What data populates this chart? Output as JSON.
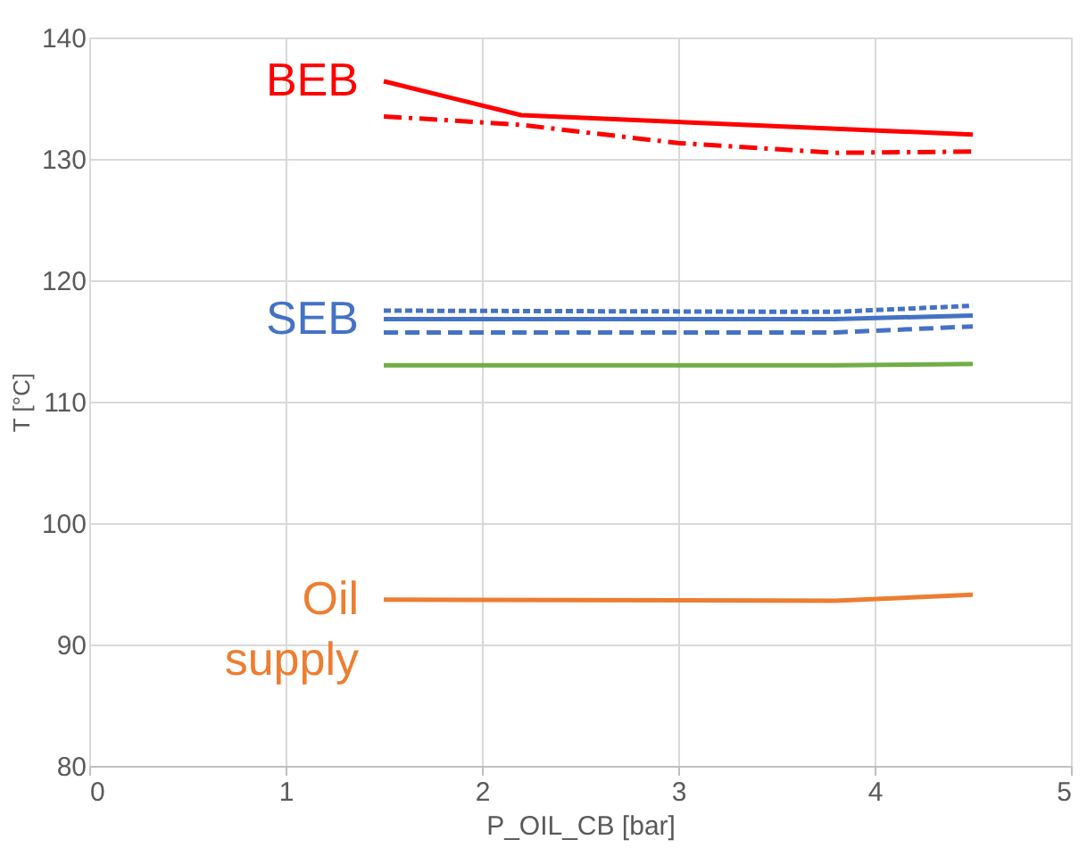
{
  "chart_data": {
    "type": "line",
    "xlabel": "P_OIL_CB [bar]",
    "ylabel": "T [°C]",
    "xlim": [
      0,
      5
    ],
    "xticks": [
      0,
      1,
      2,
      3,
      4,
      5
    ],
    "ylim": [
      80,
      140
    ],
    "yticks": [
      80,
      90,
      100,
      110,
      120,
      130,
      140
    ],
    "grid": true,
    "marker": "none",
    "series": [
      {
        "name": "BEB",
        "color": "#ff0000",
        "line_style": "solid",
        "x": [
          1.5,
          2.2,
          4.5
        ],
        "values": [
          136.4,
          133.6,
          132.0
        ]
      },
      {
        "color": "#ff0000",
        "line_style": "dashdot",
        "x": [
          1.5,
          2.2,
          3.0,
          3.8,
          4.5
        ],
        "values": [
          133.5,
          132.8,
          131.3,
          130.5,
          130.6
        ]
      },
      {
        "color": "#4472c4",
        "line_style": "dotted",
        "x": [
          1.5,
          3.8,
          4.5
        ],
        "values": [
          117.5,
          117.4,
          117.9
        ]
      },
      {
        "name": "SEB",
        "color": "#4472c4",
        "line_style": "solid",
        "x": [
          1.5,
          3.8,
          4.5
        ],
        "values": [
          116.8,
          116.8,
          117.1
        ]
      },
      {
        "color": "#4472c4",
        "line_style": "dashed",
        "x": [
          1.5,
          3.8,
          4.5
        ],
        "values": [
          115.7,
          115.7,
          116.2
        ]
      },
      {
        "color": "#70ad47",
        "line_style": "solid",
        "x": [
          1.5,
          3.8,
          4.5
        ],
        "values": [
          113.0,
          113.0,
          113.1
        ]
      },
      {
        "name": "Oil supply",
        "color": "#ed7d31",
        "line_style": "solid",
        "x": [
          1.5,
          3.8,
          4.5
        ],
        "values": [
          93.7,
          93.6,
          94.1
        ]
      }
    ]
  }
}
